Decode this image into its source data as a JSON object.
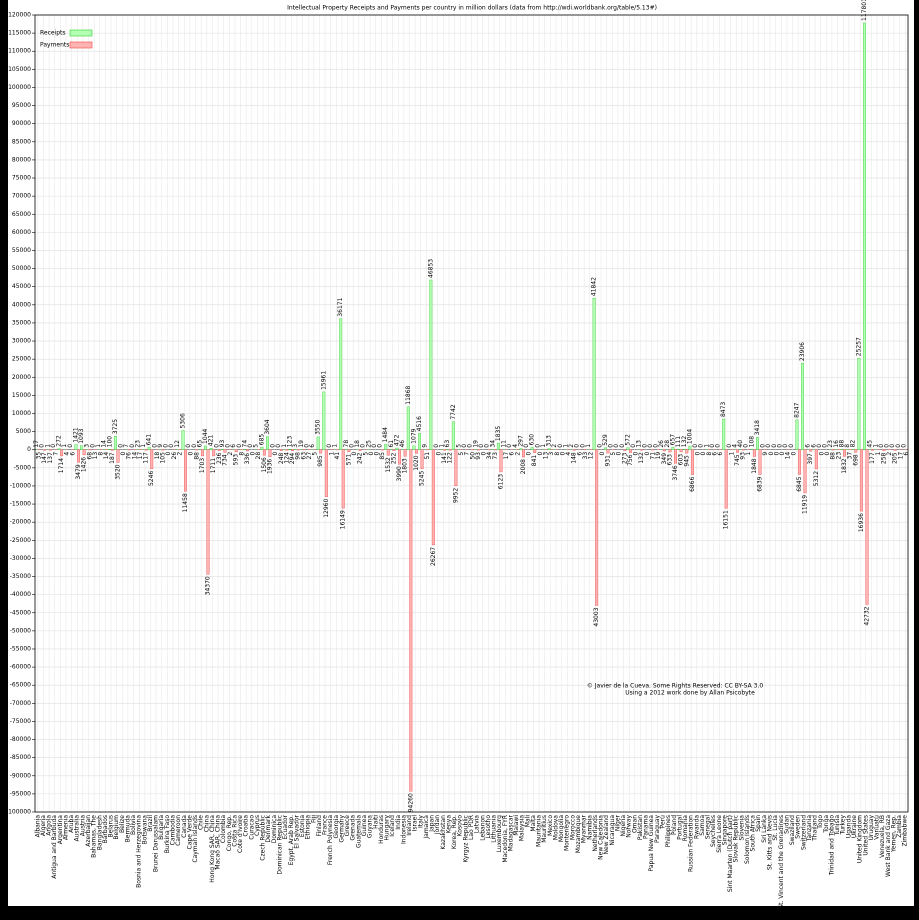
{
  "chart_data": {
    "type": "bar",
    "title": "Intellectual Property Receipts and Payments per country in million dollars (data from http://wdi.worldbank.org/table/5.13#)",
    "annotations": [
      "© Javier de la Cueva. Some Rights Reserved: CC BY-SA 3.0",
      "Using a 2012 work done by Allan Psicobyte"
    ],
    "grid": true,
    "legend": "top-left",
    "ylim": [
      -100000,
      120000
    ],
    "yticks": [
      -100000,
      -95000,
      -90000,
      -85000,
      -80000,
      -75000,
      -70000,
      -65000,
      -60000,
      -55000,
      -50000,
      -45000,
      -40000,
      -35000,
      -30000,
      -25000,
      -20000,
      -15000,
      -10000,
      -5000,
      0,
      5000,
      10000,
      15000,
      20000,
      25000,
      30000,
      35000,
      40000,
      45000,
      50000,
      55000,
      60000,
      65000,
      70000,
      75000,
      80000,
      85000,
      90000,
      95000,
      100000,
      105000,
      110000,
      115000,
      120000
    ],
    "categories": [
      "Albania",
      "Algeria",
      "Angola",
      "Antigua and Barbuda",
      "Argentina",
      "Armenia",
      "Aruba",
      "Australia",
      "Austria",
      "Azerbaijan",
      "Bahamas, The",
      "Bangladesh",
      "Barbados",
      "Belarus",
      "Belgium",
      "Belize",
      "Bermuda",
      "Bolivia",
      "Bosnia and Herzegovina",
      "Botswana",
      "Brazil",
      "Brunei Darussalam",
      "Bulgaria",
      "Burkina Faso",
      "Cambodia",
      "Cameroon",
      "Canada",
      "Cape Verde",
      "Cayman Islands",
      "Chile",
      "China",
      "Hong Kong SAR, China",
      "Macao SAR, China",
      "Colombia",
      "Congo, Rep.",
      "Costa Rica",
      "Cote d'Ivoire",
      "Croatia",
      "Curacao",
      "Cyprus",
      "Czech Republic",
      "Denmark",
      "Dominica",
      "Dominican Republic",
      "Ecuador",
      "Egypt, Arab Rep.",
      "El Salvador",
      "Estonia",
      "Ethiopia",
      "Fiji",
      "Finland",
      "France",
      "French Polynesia",
      "Georgia",
      "Germany",
      "Greece",
      "Grenada",
      "Guatemala",
      "Guinea",
      "Guyana",
      "Haiti",
      "Honduras",
      "Hungary",
      "Iceland",
      "India",
      "Indonesia",
      "Ireland",
      "Israel",
      "Italy",
      "Jamaica",
      "Japan",
      "Jordan",
      "Kazakhstan",
      "Kenya",
      "Korea, Rep.",
      "Kosovo",
      "Kyrgyz Republic",
      "Lao PDR",
      "Latvia",
      "Lebanon",
      "Lesotho",
      "Lithuania",
      "Luxembourg",
      "Macedonia, FYR",
      "Madagascar",
      "Malawi",
      "Malaysia",
      "Mali",
      "Malta",
      "Mauritania",
      "Mauritius",
      "Mexico",
      "Moldova",
      "Mongolia",
      "Montenegro",
      "Morocco",
      "Mozambique",
      "Myanmar",
      "Namibia",
      "Netherlands",
      "New Caledonia",
      "New Zealand",
      "Nicaragua",
      "Niger",
      "Nigeria",
      "Norway",
      "Oman",
      "Pakistan",
      "Panama",
      "Papua New Guinea",
      "Paraguay",
      "Peru",
      "Philippines",
      "Poland",
      "Portugal",
      "Romania",
      "Russian Federation",
      "Rwanda",
      "Samoa",
      "Senegal",
      "Seychelles",
      "Sierra Leone",
      "Singapore",
      "Sint Maarten (Dutch part)",
      "Slovak Republic",
      "Slovenia",
      "Solomon Islands",
      "South Africa",
      "Spain",
      "Sri Lanka",
      "St. Kitts and Nevis",
      "St. Lucia",
      "St. Vincent and the Grenadines",
      "Sudan",
      "Swaziland",
      "Sweden",
      "Switzerland",
      "Tanzania",
      "Thailand",
      "Togo",
      "Tonga",
      "Trinidad and Tobago",
      "Tunisia",
      "Turkey",
      "Uganda",
      "Ukraine",
      "United Kingdom",
      "United States",
      "Uruguay",
      "Vanuatu",
      "Venezuela, RB",
      "West Bank and Gaza",
      "Yemen, Rep.",
      "Zambia",
      "Zimbabwe"
    ],
    "series": [
      {
        "name": "Receipts",
        "color": "#b3ffb3",
        "stroke": "#33cc33",
        "values": [
          17,
          0,
          1,
          0,
          272,
          1,
          0,
          1421,
          1093,
          3,
          0,
          1,
          14,
          100,
          3725,
          0,
          7,
          0,
          23,
          1,
          641,
          0,
          9,
          0,
          0,
          12,
          5306,
          0,
          0,
          65,
          1044,
          421,
          0,
          93,
          0,
          6,
          0,
          74,
          0,
          5,
          685,
          3604,
          0,
          0,
          1,
          123,
          3,
          19,
          0,
          6,
          3550,
          15961,
          0,
          1,
          36171,
          78,
          0,
          18,
          0,
          25,
          0,
          0,
          1484,
          61,
          472,
          46,
          11868,
          1079,
          4516,
          9,
          46853,
          0,
          1,
          63,
          7742,
          5,
          0,
          0,
          19,
          0,
          0,
          34,
          1835,
          11,
          0,
          4,
          297,
          0,
          630,
          0,
          1,
          313,
          2,
          0,
          1,
          2,
          0,
          0,
          1,
          41842,
          0,
          529,
          0,
          0,
          0,
          572,
          0,
          13,
          0,
          0,
          0,
          26,
          28,
          657,
          111,
          132,
          1004,
          0,
          0,
          1,
          0,
          0,
          8473,
          0,
          4,
          40,
          0,
          108,
          3418,
          0,
          0,
          0,
          0,
          0,
          0,
          8247,
          23906,
          6,
          6,
          0,
          0,
          23,
          16,
          88,
          8,
          82,
          25257,
          117801,
          45,
          1,
          0,
          0,
          0,
          0,
          0
        ]
      },
      {
        "name": "Payments",
        "color": "#ffb3b3",
        "stroke": "#ee4444",
        "values": [
          -35,
          -147,
          -137,
          -7,
          -1714,
          -4,
          -6,
          -3479,
          -1426,
          -68,
          -13,
          -8,
          -14,
          -187,
          -3520,
          0,
          -76,
          -14,
          -17,
          -117,
          -5246,
          -18,
          -105,
          0,
          -26,
          -2,
          -11458,
          0,
          -88,
          -1703,
          -34370,
          -1711,
          -236,
          -734,
          -2,
          -593,
          -8,
          -336,
          0,
          -28,
          -1506,
          -1936,
          0,
          -248,
          -124,
          -294,
          -98,
          -63,
          -27,
          -5,
          -985,
          -12960,
          -1,
          -41,
          -16149,
          -571,
          0,
          -242,
          -5,
          0,
          0,
          -85,
          -1532,
          -252,
          -3990,
          -1803,
          -94260,
          -1020,
          -5245,
          -51,
          -26267,
          0,
          -141,
          -122,
          -9952,
          -5,
          -7,
          -50,
          -93,
          0,
          -34,
          -73,
          -6123,
          -17,
          -6,
          -2,
          -2008,
          0,
          -841,
          0,
          -13,
          -3,
          -8,
          0,
          -4,
          -148,
          -6,
          -33,
          -12,
          -43003,
          0,
          -931,
          -5,
          0,
          -273,
          -756,
          0,
          -132,
          0,
          -71,
          -19,
          -349,
          -633,
          -3746,
          -603,
          -945,
          -6866,
          0,
          0,
          -8,
          -6,
          -6,
          -16151,
          -1,
          -745,
          -93,
          -1,
          -1848,
          -6839,
          -9,
          0,
          0,
          0,
          -14,
          0,
          -6845,
          -11919,
          -397,
          -5312,
          0,
          0,
          -88,
          -23,
          -1832,
          -37,
          -698,
          -16936,
          -42732,
          -177,
          -1,
          -258,
          -2,
          -205,
          -17,
          -6
        ],
        "value_labels": [
          "35",
          "147",
          "137",
          "7",
          "1714",
          "4",
          "6",
          "3479",
          "1426",
          "68",
          "13",
          "8",
          "14",
          "187",
          "3520",
          "0",
          "76",
          "14",
          "17",
          "117",
          "5246",
          "18",
          "105",
          "0",
          "26",
          "2",
          "11458",
          "0",
          "88",
          "1703",
          "34370",
          "1711",
          "236",
          "734",
          "2",
          "593",
          "8",
          "336",
          "0",
          "28",
          "1506",
          "1936",
          "0",
          "248",
          "124",
          "294",
          "98",
          "63",
          "27",
          "5",
          "985",
          "12960",
          "1",
          "41",
          "16149",
          "571",
          "0",
          "242",
          "5",
          "0",
          "0",
          "85",
          "1532",
          "252",
          "3990",
          "1803",
          "94260",
          "1020",
          "5245",
          "51",
          "26267",
          "0",
          "141",
          "122",
          "9952",
          "5",
          "7",
          "50",
          "93",
          "0",
          "34",
          "73",
          "6123",
          "17",
          "6",
          "2",
          "2008",
          "0",
          "841",
          "0",
          "13",
          "3",
          "8",
          "0",
          "4",
          "148",
          "6",
          "33",
          "12",
          "43003",
          "0",
          "931",
          "5",
          "0",
          "273",
          "756",
          "0",
          "132",
          "0",
          "71",
          "19",
          "349",
          "633",
          "3746",
          "603",
          "945",
          "6866",
          "0",
          "0",
          "8",
          "6",
          "6",
          "16151",
          "1",
          "745",
          "93",
          "1",
          "1848",
          "6839",
          "9",
          "0",
          "0",
          "0",
          "14",
          "0",
          "6845",
          "11919",
          "397",
          "5312",
          "0",
          "0",
          "88",
          "23",
          "1832",
          "37",
          "698",
          "16936",
          "42732",
          "177",
          "1",
          "258",
          "2",
          "205",
          "17",
          "6"
        ]
      }
    ]
  }
}
